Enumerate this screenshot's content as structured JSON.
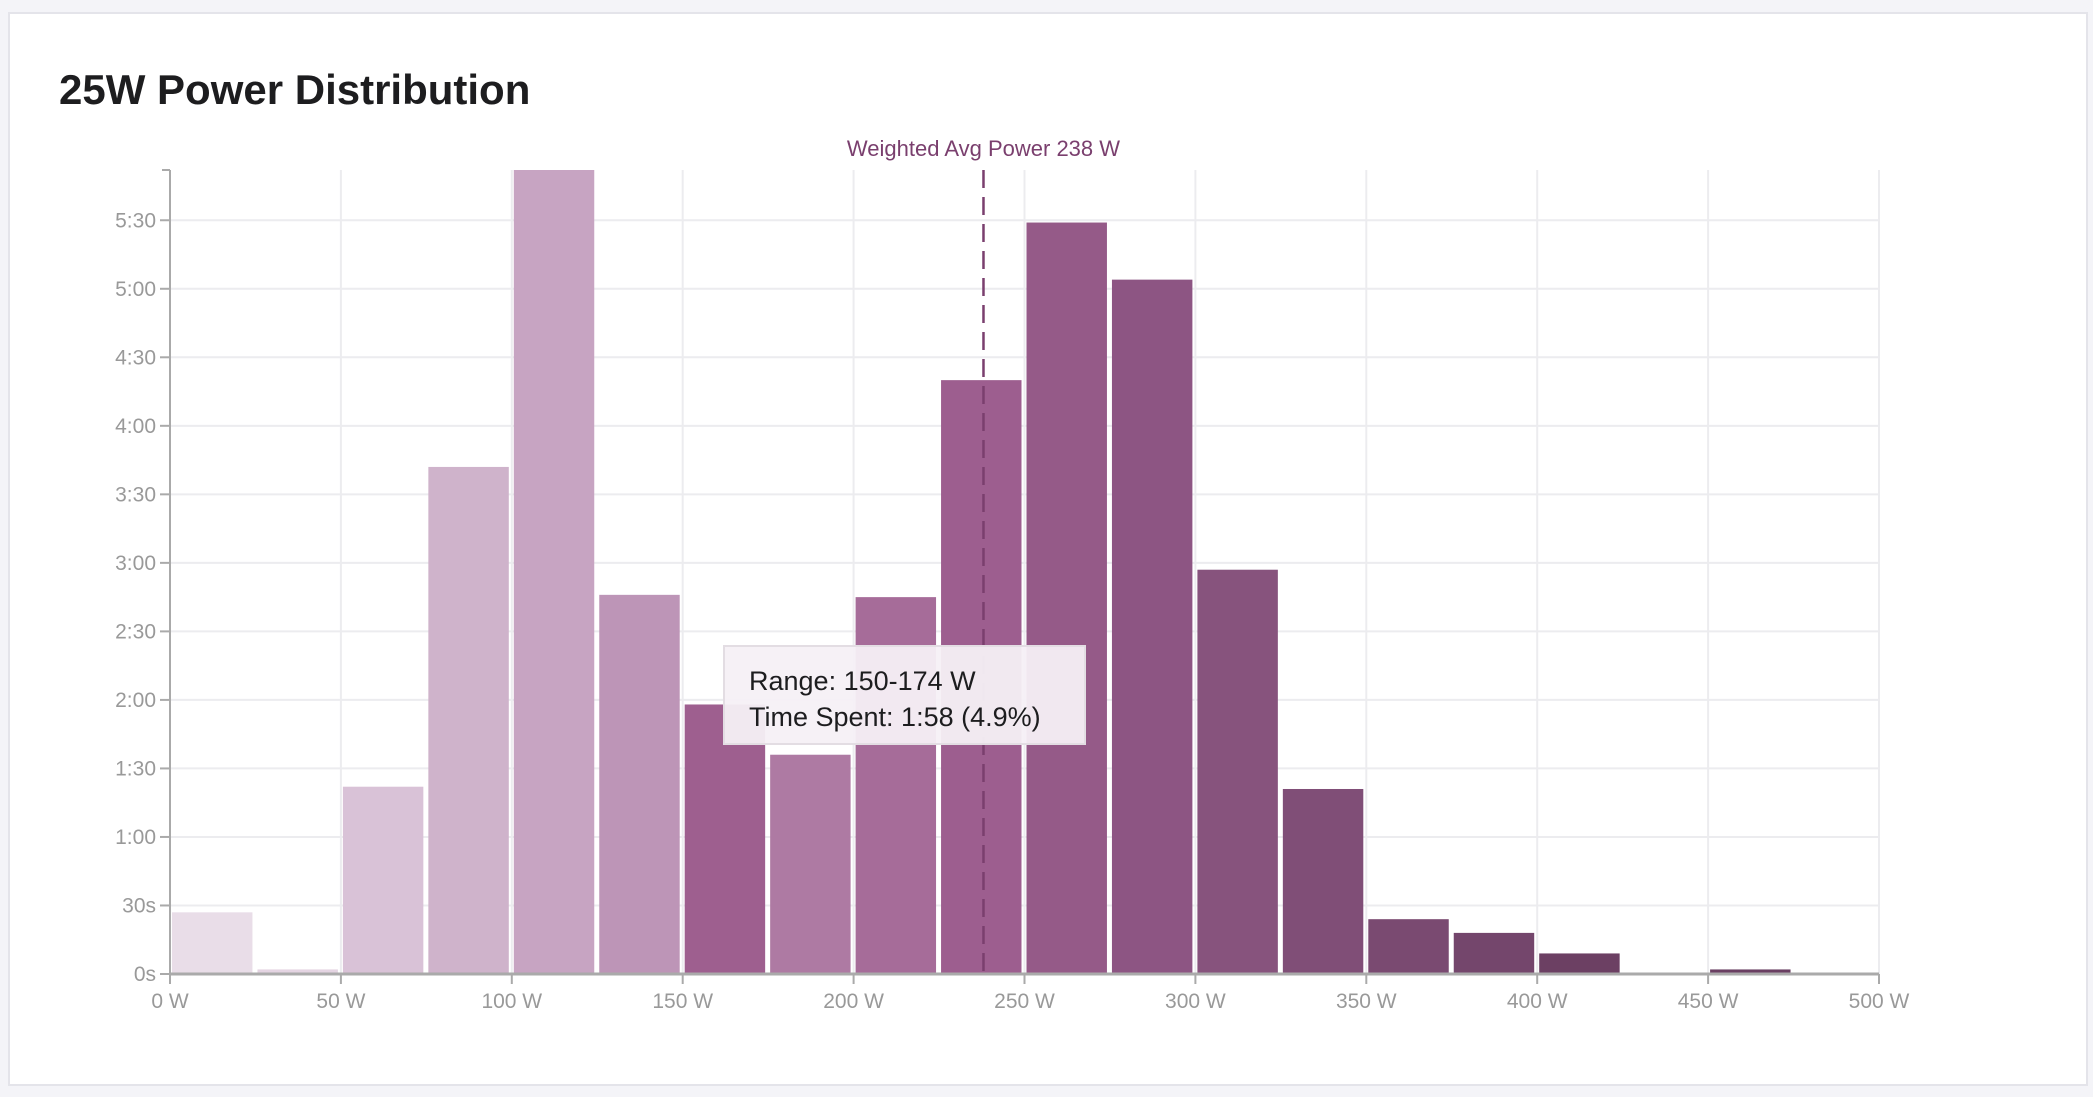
{
  "title": "25W Power Distribution",
  "chart_data": {
    "type": "bar",
    "title": "25W Power Distribution",
    "xlabel": "",
    "ylabel": "",
    "x_unit": "W",
    "y_unit": "seconds",
    "bin_width": 25,
    "xlim": [
      0,
      500
    ],
    "ylim": [
      0,
      352
    ],
    "grid": true,
    "x_ticks": [
      0,
      50,
      100,
      150,
      200,
      250,
      300,
      350,
      400,
      450,
      500
    ],
    "x_tick_labels": [
      "0 W",
      "50 W",
      "100 W",
      "150 W",
      "200 W",
      "250 W",
      "300 W",
      "350 W",
      "400 W",
      "450 W",
      "500 W"
    ],
    "y_ticks": [
      0,
      30,
      60,
      90,
      120,
      150,
      180,
      210,
      240,
      270,
      300,
      330
    ],
    "y_tick_labels": [
      "0s",
      "30s",
      "1:00",
      "1:30",
      "2:00",
      "2:30",
      "3:00",
      "3:30",
      "4:00",
      "4:30",
      "5:00",
      "5:30"
    ],
    "categories": [
      "0-24",
      "25-49",
      "50-74",
      "75-99",
      "100-124",
      "125-149",
      "150-174",
      "175-199",
      "200-224",
      "225-249",
      "250-274",
      "275-299",
      "300-324",
      "325-349",
      "350-374",
      "375-399",
      "400-424",
      "425-449",
      "450-474",
      "475-499"
    ],
    "bin_starts": [
      0,
      25,
      50,
      75,
      100,
      125,
      150,
      175,
      200,
      225,
      250,
      275,
      300,
      325,
      350,
      375,
      400,
      425,
      450,
      475
    ],
    "values": [
      27,
      2,
      82,
      222,
      352,
      166,
      118,
      96,
      165,
      260,
      329,
      304,
      177,
      81,
      24,
      18,
      9,
      0,
      2,
      0
    ],
    "colors": [
      "#e9dde8",
      "#e4d4e2",
      "#d9c2d7",
      "#cfb3cb",
      "#c7a4c2",
      "#bd95b7",
      "#9e5f8f",
      "#ae7aa3",
      "#a66c99",
      "#9d5e8f",
      "#955a88",
      "#8d5583",
      "#87537d",
      "#804e77",
      "#7a4a71",
      "#74466c",
      "#6c4063",
      "#6a3f62",
      "#6a3f62",
      "#6a3f62"
    ],
    "annotation": {
      "label": "Weighted Avg Power 238 W",
      "x": 238,
      "color": "#7a3f6e"
    },
    "tooltip": {
      "range": "Range: 150-174 W",
      "time_spent": "Time Spent: 1:58 (4.9%)"
    }
  }
}
